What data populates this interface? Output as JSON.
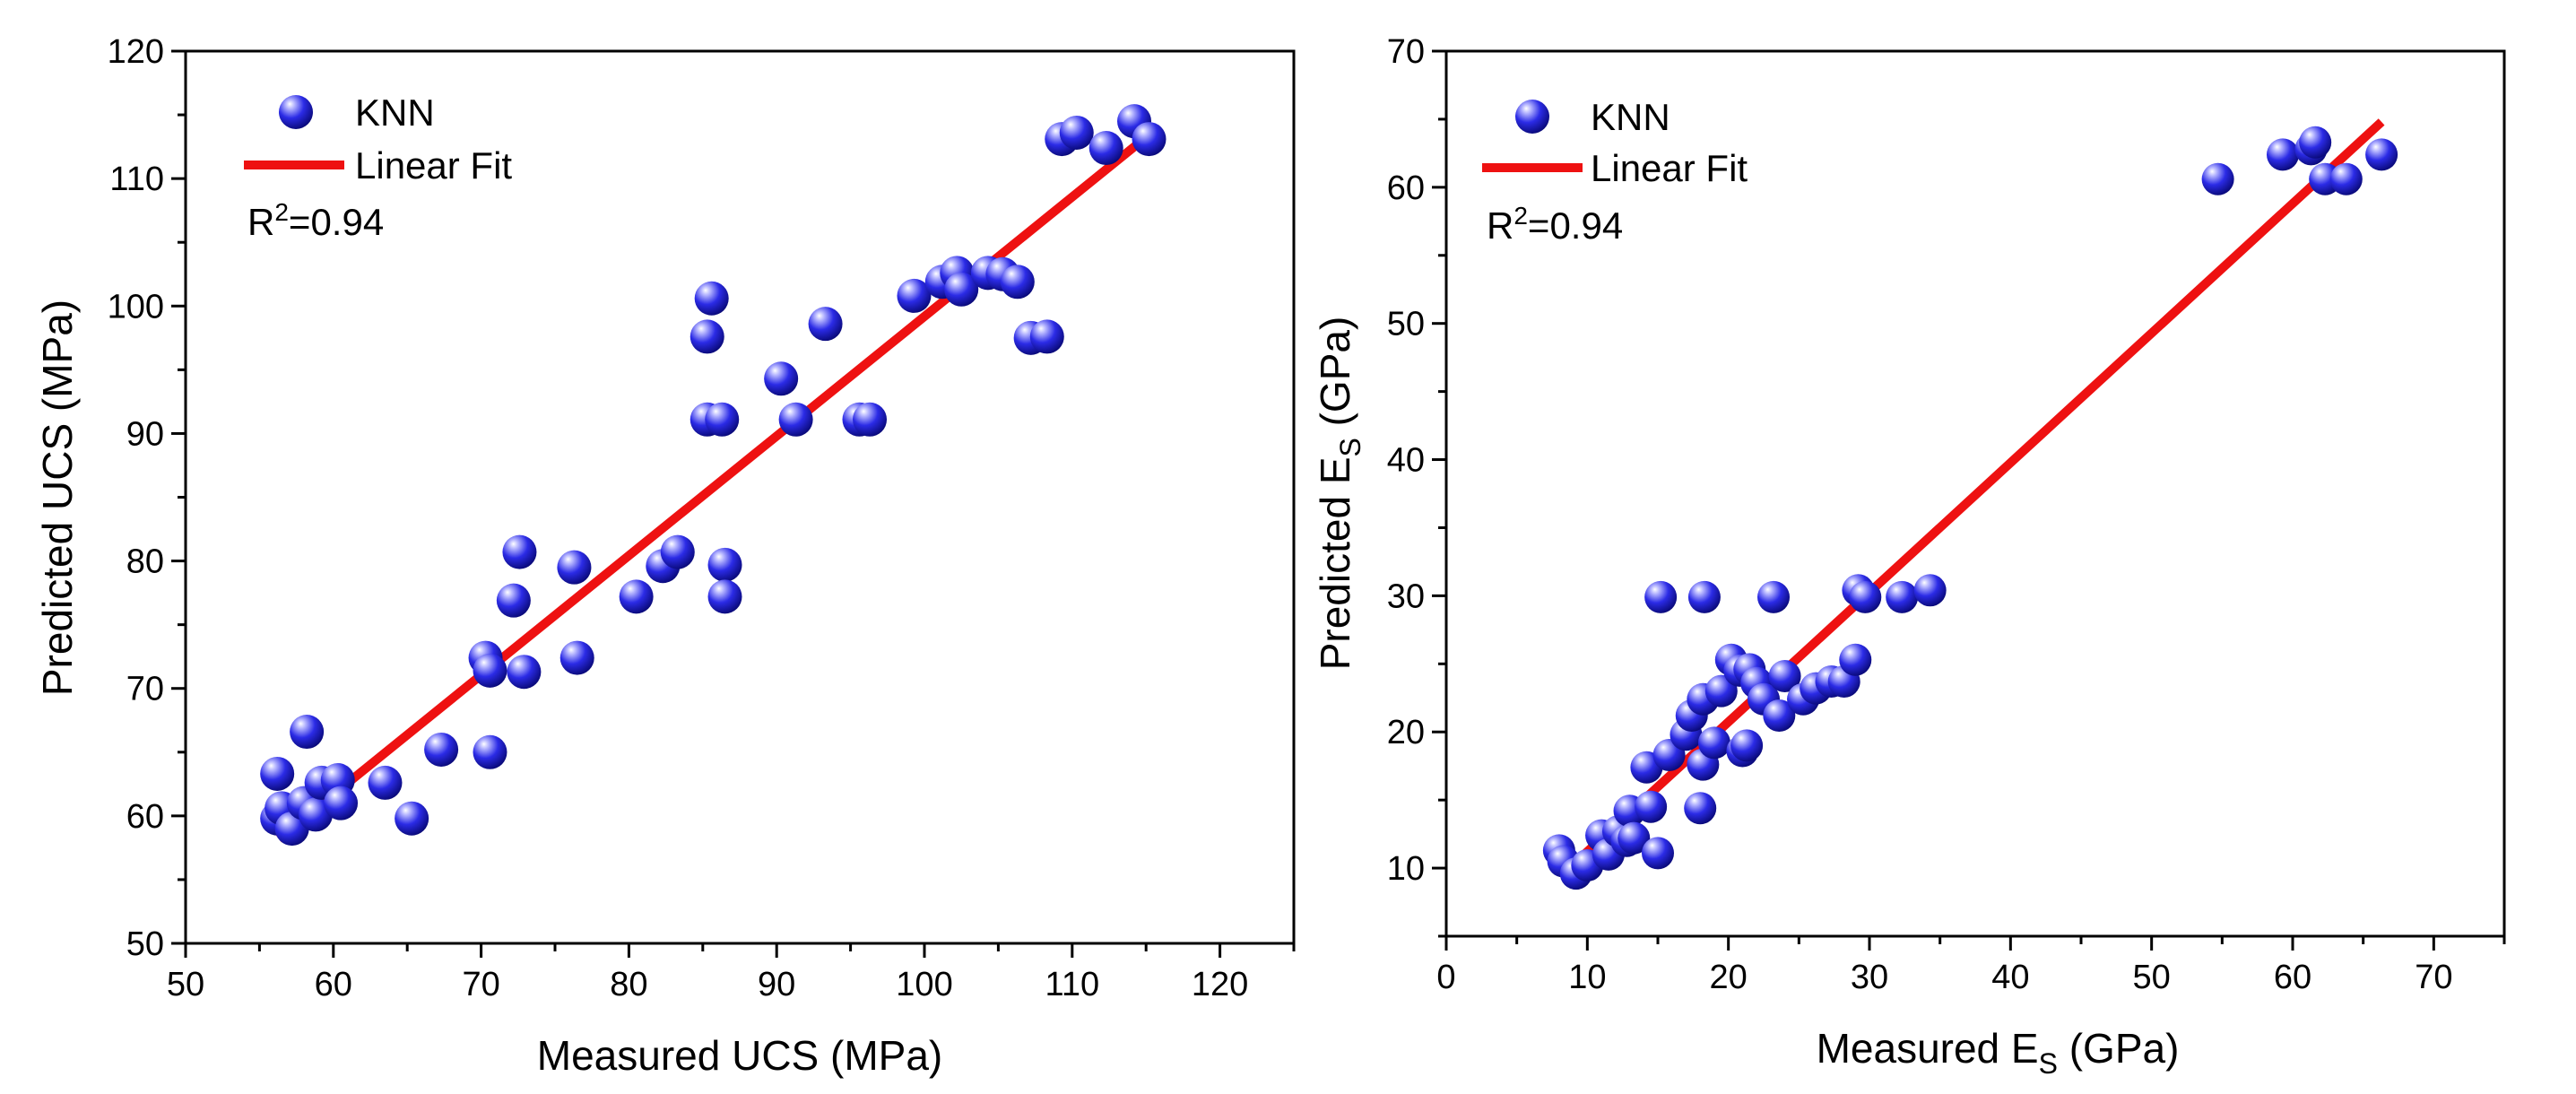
{
  "chart_data": [
    {
      "type": "scatter",
      "xlabel": {
        "main": "Measured UCS (MPa)",
        "sub": ""
      },
      "ylabel": {
        "main": "Predicted UCS (MPa)",
        "sub": ""
      },
      "xlim": [
        50,
        125
      ],
      "ylim": [
        50,
        120
      ],
      "xticks": [
        "50",
        "60",
        "70",
        "80",
        "90",
        "100",
        "110",
        "120"
      ],
      "yticks": [
        "50",
        "60",
        "70",
        "80",
        "90",
        "100",
        "110",
        "120"
      ],
      "grid": false,
      "legend": {
        "position": "top-left",
        "entries": [
          "KNN",
          "Linear Fit"
        ]
      },
      "annotation": {
        "prefix": "R",
        "sup": "2",
        "value": "=0.94"
      },
      "series": [
        {
          "name": "KNN",
          "color": "#2222ee",
          "marker": "sphere",
          "points": [
            [
              56.2,
              63.3
            ],
            [
              56.2,
              59.8
            ],
            [
              56.5,
              60.6
            ],
            [
              57.2,
              59.0
            ],
            [
              58.0,
              61.0
            ],
            [
              58.2,
              66.6
            ],
            [
              58.8,
              60.1
            ],
            [
              59.2,
              62.6
            ],
            [
              60.3,
              62.8
            ],
            [
              60.5,
              61.0
            ],
            [
              63.5,
              62.6
            ],
            [
              65.3,
              59.8
            ],
            [
              67.3,
              65.2
            ],
            [
              70.3,
              72.4
            ],
            [
              70.6,
              65.0
            ],
            [
              70.6,
              71.4
            ],
            [
              72.2,
              76.9
            ],
            [
              72.6,
              80.7
            ],
            [
              72.9,
              71.3
            ],
            [
              76.3,
              79.5
            ],
            [
              76.5,
              72.4
            ],
            [
              80.5,
              77.2
            ],
            [
              82.3,
              79.6
            ],
            [
              83.3,
              80.7
            ],
            [
              85.3,
              91.1
            ],
            [
              85.3,
              97.6
            ],
            [
              85.6,
              100.6
            ],
            [
              86.3,
              91.1
            ],
            [
              86.5,
              79.7
            ],
            [
              86.5,
              77.2
            ],
            [
              90.3,
              94.3
            ],
            [
              91.3,
              91.1
            ],
            [
              93.3,
              98.6
            ],
            [
              95.6,
              91.1
            ],
            [
              96.3,
              91.1
            ],
            [
              99.3,
              100.8
            ],
            [
              101.2,
              101.9
            ],
            [
              102.2,
              102.6
            ],
            [
              102.5,
              101.3
            ],
            [
              104.3,
              102.6
            ],
            [
              105.3,
              102.5
            ],
            [
              106.3,
              101.9
            ],
            [
              107.2,
              97.5
            ],
            [
              108.3,
              97.6
            ],
            [
              109.3,
              113.1
            ],
            [
              110.3,
              113.6
            ],
            [
              112.3,
              112.4
            ],
            [
              114.2,
              114.5
            ],
            [
              115.2,
              113.1
            ]
          ]
        },
        {
          "name": "Linear Fit",
          "color": "#ee1111",
          "x": [
            56.3,
            115.7
          ],
          "y": [
            58.2,
            113.9
          ]
        }
      ]
    },
    {
      "type": "scatter",
      "xlabel": {
        "main": "Measured E",
        "sub": "S",
        "unit": " (GPa)"
      },
      "ylabel": {
        "main": "Predicted E",
        "sub": "S",
        "unit": " (GPa)"
      },
      "xlim": [
        0,
        75
      ],
      "ylim": [
        5,
        70
      ],
      "xticks": [
        "0",
        "10",
        "20",
        "30",
        "40",
        "50",
        "60",
        "70"
      ],
      "yticks": [
        "10",
        "20",
        "30",
        "40",
        "50",
        "60",
        "70"
      ],
      "grid": false,
      "legend": {
        "position": "top-left",
        "entries": [
          "KNN",
          "Linear Fit"
        ]
      },
      "annotation": {
        "prefix": "R",
        "sup": "2",
        "value": "=0.94"
      },
      "series": [
        {
          "name": "KNN",
          "color": "#2222ee",
          "marker": "sphere",
          "points": [
            [
              8.0,
              11.3
            ],
            [
              8.3,
              10.5
            ],
            [
              9.2,
              9.6
            ],
            [
              10.0,
              10.2
            ],
            [
              11.0,
              12.4
            ],
            [
              11.5,
              11.0
            ],
            [
              12.2,
              12.7
            ],
            [
              12.8,
              12.0
            ],
            [
              13.0,
              14.2
            ],
            [
              13.3,
              12.2
            ],
            [
              14.2,
              17.4
            ],
            [
              14.5,
              14.5
            ],
            [
              15.0,
              11.1
            ],
            [
              15.2,
              29.9
            ],
            [
              15.8,
              18.3
            ],
            [
              17.0,
              19.8
            ],
            [
              17.4,
              21.2
            ],
            [
              18.0,
              14.4
            ],
            [
              18.2,
              22.4
            ],
            [
              18.2,
              17.6
            ],
            [
              18.3,
              29.9
            ],
            [
              19.0,
              19.2
            ],
            [
              19.5,
              23.0
            ],
            [
              20.2,
              25.3
            ],
            [
              20.8,
              24.5
            ],
            [
              21.0,
              18.6
            ],
            [
              21.3,
              19.0
            ],
            [
              21.5,
              24.6
            ],
            [
              22.0,
              23.6
            ],
            [
              22.5,
              22.4
            ],
            [
              23.2,
              29.9
            ],
            [
              23.6,
              21.2
            ],
            [
              24.0,
              24.1
            ],
            [
              25.3,
              22.4
            ],
            [
              26.2,
              23.2
            ],
            [
              27.3,
              23.7
            ],
            [
              28.2,
              23.7
            ],
            [
              29.0,
              25.3
            ],
            [
              29.2,
              30.4
            ],
            [
              29.7,
              29.9
            ],
            [
              32.3,
              29.9
            ],
            [
              34.3,
              30.4
            ],
            [
              54.7,
              60.6
            ],
            [
              59.3,
              62.4
            ],
            [
              61.3,
              62.8
            ],
            [
              61.6,
              63.3
            ],
            [
              62.3,
              60.6
            ],
            [
              63.8,
              60.6
            ],
            [
              66.3,
              62.4
            ]
          ]
        },
        {
          "name": "Linear Fit",
          "color": "#ee1111",
          "x": [
            8.2,
            66.3
          ],
          "y": [
            9.5,
            64.8
          ]
        }
      ]
    }
  ]
}
